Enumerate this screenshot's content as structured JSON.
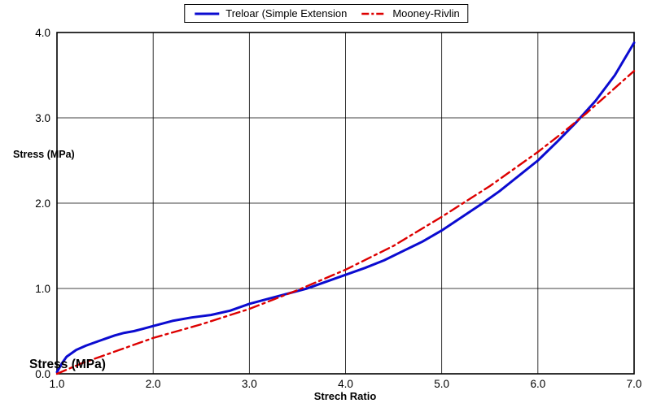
{
  "colors": {
    "treloar": "#0b0bd0",
    "mooney": "#dd0000",
    "grid": "#000000",
    "background": "#ffffff"
  },
  "legend": {
    "items": [
      {
        "label": "Treloar (Simple Extension",
        "color": "#0b0bd0",
        "style": "solid"
      },
      {
        "label": "Mooney-Rivlin",
        "color": "#dd0000",
        "style": "dashdot"
      }
    ]
  },
  "axes": {
    "y_label": "Stress (MPa)",
    "y_label_corner": "Stress (MPa)",
    "x_label": "Strech Ratio"
  },
  "chart_data": {
    "type": "line",
    "title": "",
    "xlabel": "Strech Ratio",
    "ylabel": "Stress (MPa)",
    "xlim": [
      1.0,
      7.0
    ],
    "ylim": [
      0.0,
      4.0
    ],
    "x_ticks": [
      1.0,
      2.0,
      3.0,
      4.0,
      5.0,
      6.0,
      7.0
    ],
    "y_ticks": [
      0.0,
      1.0,
      2.0,
      3.0,
      4.0
    ],
    "grid": true,
    "legend_position": "top-center",
    "series": [
      {
        "name": "Treloar (Simple Extension",
        "color": "#0b0bd0",
        "style": "solid",
        "x": [
          1.0,
          1.05,
          1.1,
          1.2,
          1.3,
          1.4,
          1.5,
          1.6,
          1.7,
          1.8,
          1.9,
          2.0,
          2.2,
          2.4,
          2.6,
          2.8,
          3.0,
          3.2,
          3.4,
          3.6,
          3.8,
          4.0,
          4.2,
          4.4,
          4.6,
          4.8,
          5.0,
          5.2,
          5.4,
          5.6,
          5.8,
          6.0,
          6.2,
          6.4,
          6.6,
          6.8,
          7.0
        ],
        "y": [
          0.02,
          0.12,
          0.2,
          0.28,
          0.33,
          0.37,
          0.41,
          0.45,
          0.48,
          0.5,
          0.53,
          0.56,
          0.62,
          0.66,
          0.69,
          0.74,
          0.82,
          0.88,
          0.94,
          1.0,
          1.08,
          1.16,
          1.24,
          1.33,
          1.44,
          1.55,
          1.68,
          1.83,
          1.98,
          2.14,
          2.32,
          2.5,
          2.72,
          2.95,
          3.2,
          3.5,
          3.88
        ]
      },
      {
        "name": "Mooney-Rivlin",
        "color": "#dd0000",
        "style": "dashdot",
        "x": [
          1.0,
          1.25,
          1.5,
          1.75,
          2.0,
          2.25,
          2.5,
          2.75,
          3.0,
          3.25,
          3.5,
          3.75,
          4.0,
          4.25,
          4.5,
          4.75,
          5.0,
          5.25,
          5.5,
          5.75,
          6.0,
          6.25,
          6.5,
          6.75,
          7.0
        ],
        "y": [
          0.0,
          0.12,
          0.22,
          0.32,
          0.42,
          0.5,
          0.58,
          0.67,
          0.76,
          0.87,
          0.98,
          1.1,
          1.22,
          1.36,
          1.5,
          1.67,
          1.84,
          2.02,
          2.2,
          2.4,
          2.6,
          2.82,
          3.05,
          3.3,
          3.55
        ]
      }
    ]
  }
}
